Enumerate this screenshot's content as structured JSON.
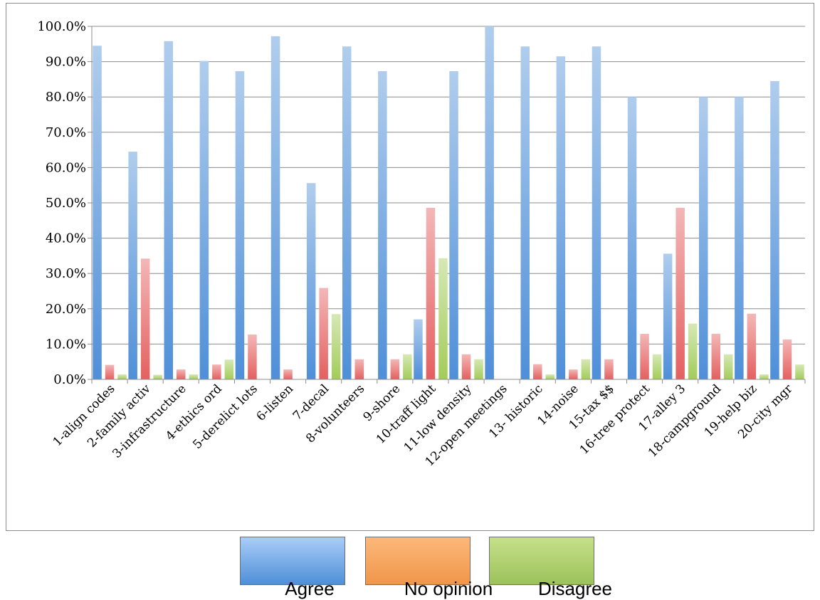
{
  "chart_data": {
    "type": "bar",
    "categories": [
      "1-align codes",
      "2-family activ",
      "3-infrastructure",
      "4-ethics ord",
      "5-derelict lots",
      "6-listen",
      "7-decal",
      "8-volunteers",
      "9-shore",
      "10-traff light",
      "11-low density",
      "12-open meetings",
      "13- historic",
      "14-noise",
      "15-tax $$",
      "16-tree protect",
      "17-alley 3",
      "18-campground",
      "19-help biz",
      "20-city mgr"
    ],
    "series": [
      {
        "name": "Agree",
        "color": "#4f8fd8",
        "values": [
          94.5,
          64.5,
          95.8,
          90.2,
          87.3,
          97.2,
          55.6,
          94.3,
          87.3,
          17.0,
          87.3,
          100.0,
          94.3,
          91.5,
          94.3,
          80.0,
          35.6,
          80.0,
          80.0,
          84.5
        ]
      },
      {
        "name": "No opinion",
        "color": "#e46060",
        "values": [
          4.1,
          34.2,
          2.8,
          4.2,
          12.7,
          2.8,
          25.9,
          5.7,
          5.7,
          48.6,
          7.1,
          0.0,
          4.3,
          2.8,
          5.7,
          12.9,
          48.6,
          12.9,
          18.6,
          11.3
        ]
      },
      {
        "name": "Disagree",
        "color": "#a3cc5a",
        "values": [
          1.4,
          1.3,
          1.4,
          5.6,
          0.0,
          0.0,
          18.5,
          0.0,
          7.1,
          34.3,
          5.7,
          0.0,
          1.4,
          5.7,
          0.0,
          7.1,
          15.8,
          7.1,
          1.4,
          4.2
        ]
      }
    ],
    "ylim": [
      0,
      100
    ],
    "yticks": [
      "0.0%",
      "10.0%",
      "20.0%",
      "30.0%",
      "40.0%",
      "50.0%",
      "60.0%",
      "70.0%",
      "80.0%",
      "90.0%",
      "100.0%"
    ],
    "grid": true,
    "legend_position": "bottom",
    "legend": [
      {
        "label": "Agree",
        "swatch_top": "#a9cdf8",
        "swatch_bottom": "#4f8fd8"
      },
      {
        "label": "No opinion",
        "swatch_top": "#fcb87a",
        "swatch_bottom": "#f0964a"
      },
      {
        "label": "Disagree",
        "swatch_top": "#c6e08a",
        "swatch_bottom": "#9cc25a"
      }
    ]
  }
}
